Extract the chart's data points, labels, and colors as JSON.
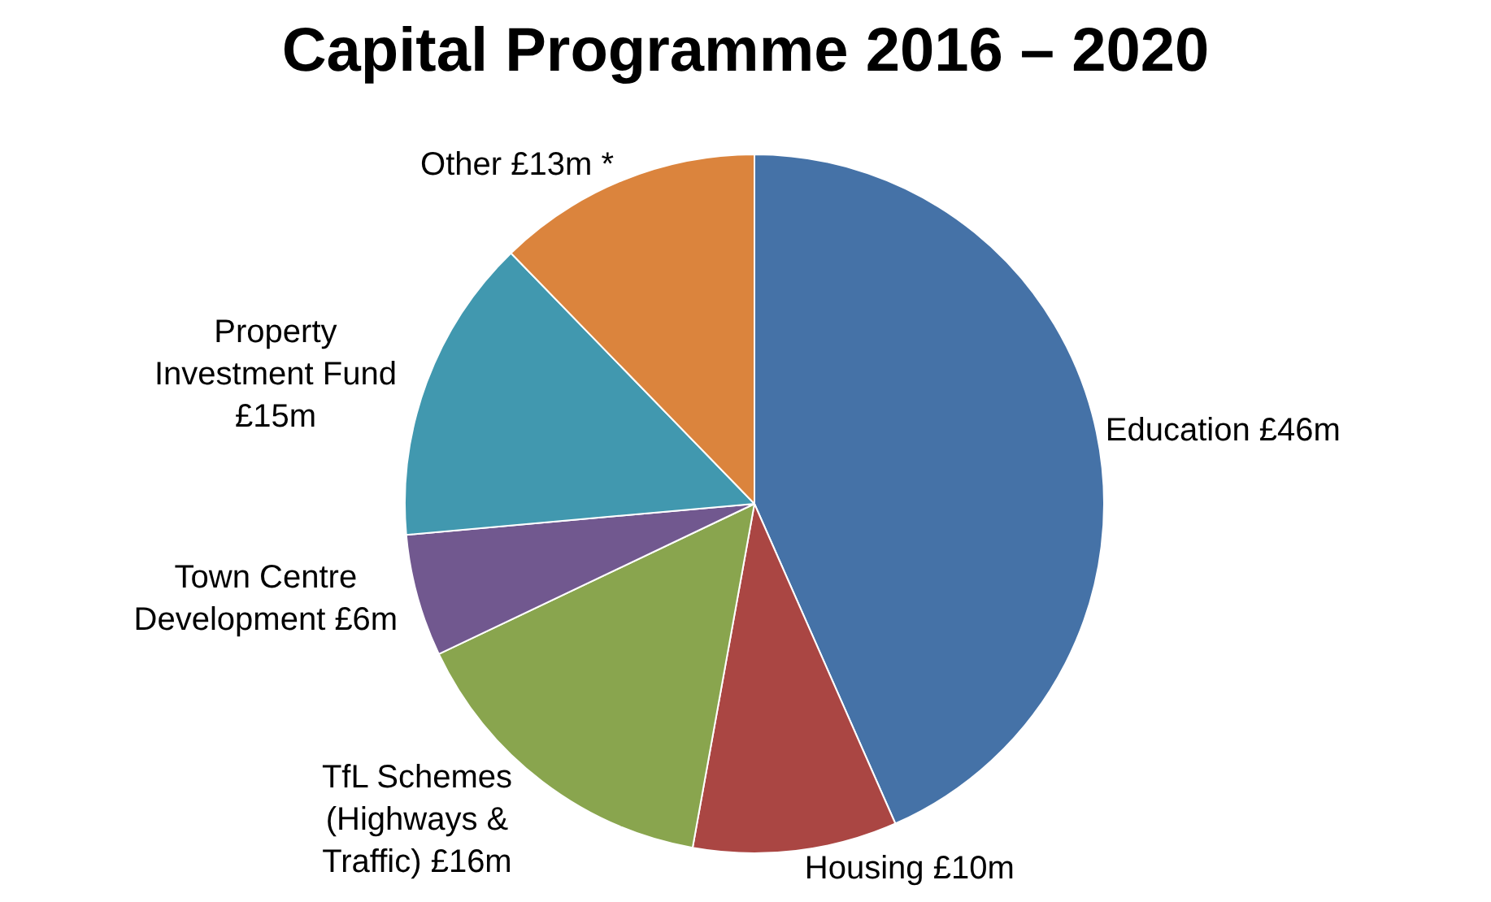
{
  "chart_data": {
    "type": "pie",
    "title": "Capital Programme 2016 – 2020",
    "categories": [
      "Education £46m",
      "Housing £10m",
      "TfL Schemes (Highways & Traffic) £16m",
      "Town Centre Development £6m",
      "Property Investment Fund £15m",
      "Other £13m *"
    ],
    "values": [
      46,
      10,
      16,
      6,
      15,
      13
    ],
    "colors": [
      "#4572a7",
      "#aa4643",
      "#89a54e",
      "#71588f",
      "#4198af",
      "#db843d"
    ],
    "legend": false
  }
}
